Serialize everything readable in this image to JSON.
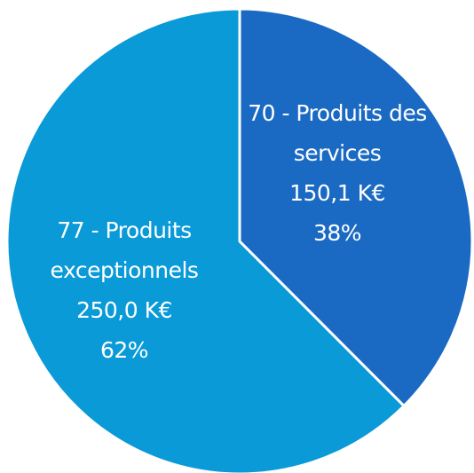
{
  "chart_data": {
    "type": "pie",
    "categories": [
      "70 - Produits des services",
      "77 - Produits exceptionnels"
    ],
    "values": [
      150.1,
      250.0
    ],
    "value_labels": [
      "150,1 K€",
      "250,0 K€"
    ],
    "percent_labels": [
      "38%",
      "62%"
    ],
    "colors": [
      "#1a6ac3",
      "#0a9ad7"
    ]
  }
}
